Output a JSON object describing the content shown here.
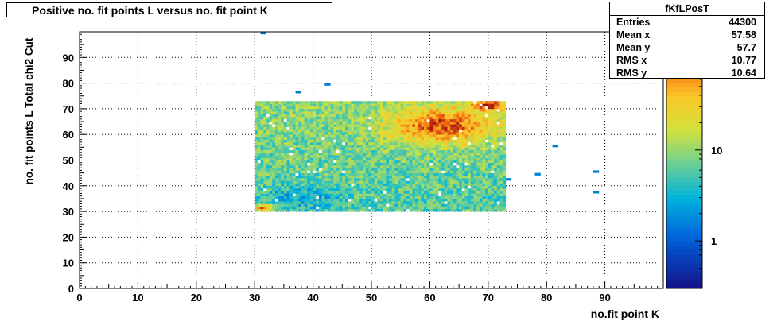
{
  "chart_data": {
    "type": "heatmap",
    "title": "Positive no. fit points L versus no. fit point K",
    "xlabel": "no.fit point K",
    "ylabel": "no. fit points  L  Total chi2 Cut",
    "xlim": [
      0,
      100
    ],
    "ylim": [
      0,
      100
    ],
    "x_ticks": [
      0,
      10,
      20,
      30,
      40,
      50,
      60,
      70,
      80,
      90
    ],
    "y_ticks": [
      0,
      10,
      20,
      30,
      40,
      50,
      60,
      70,
      80,
      90
    ],
    "z_scale": "log",
    "colorbar_ticks": [
      1,
      10
    ],
    "grid": true,
    "dense_region": {
      "x_range": [
        30,
        73
      ],
      "y_range": [
        30,
        73
      ]
    },
    "hot_spots": [
      {
        "x": 62,
        "y": 63,
        "level": "max"
      },
      {
        "x": 70,
        "y": 71,
        "level": "max"
      },
      {
        "x": 31,
        "y": 31,
        "level": "high"
      }
    ],
    "isolated_bins": [
      {
        "x": 31,
        "y": 99
      },
      {
        "x": 37,
        "y": 76
      },
      {
        "x": 42,
        "y": 79
      },
      {
        "x": 73,
        "y": 42
      },
      {
        "x": 78,
        "y": 44
      },
      {
        "x": 81,
        "y": 55
      },
      {
        "x": 88,
        "y": 45
      },
      {
        "x": 88,
        "y": 37
      }
    ],
    "stats": {
      "name": "fKfLPosT",
      "entries_label": "Entries",
      "entries": "44300",
      "mean_x_label": "Mean x",
      "mean_x": "57.58",
      "mean_y_label": "Mean y",
      "mean_y": "57.7",
      "rms_x_label": "RMS x",
      "rms_x": "10.77",
      "rms_y_label": "RMS y",
      "rms_y": "10.64"
    }
  }
}
